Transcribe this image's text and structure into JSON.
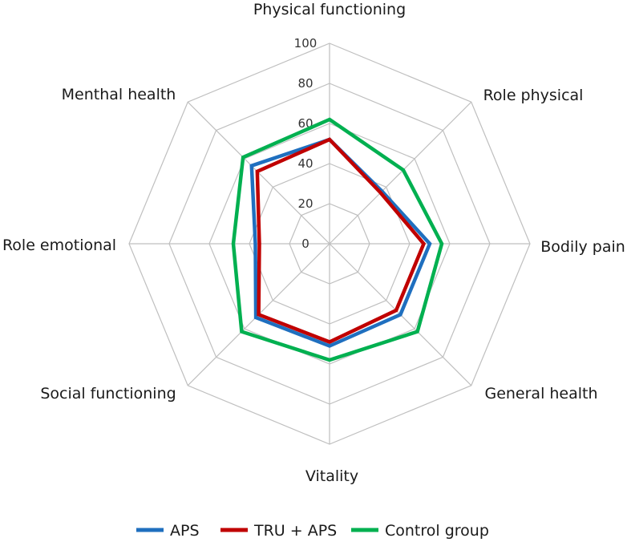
{
  "chart_data": {
    "type": "radar",
    "title": "",
    "axes": [
      "Physical functioning",
      "Role physical",
      "Bodily pain",
      "General health",
      "Vitality",
      "Social functioning",
      "Role emotional",
      "Menthal health"
    ],
    "rlim": [
      0,
      100
    ],
    "ticks": [
      "0",
      "20",
      "40",
      "60",
      "80",
      "100"
    ],
    "tick_values": [
      0,
      20,
      40,
      60,
      80,
      100
    ],
    "series": [
      {
        "name": "APS",
        "color": "#1f6fbf",
        "values": [
          52,
          37,
          50,
          50,
          51,
          52,
          37,
          55
        ]
      },
      {
        "name": "TRU + APS",
        "color": "#c00000",
        "values": [
          52,
          36,
          47,
          47,
          49,
          50,
          35,
          51
        ]
      },
      {
        "name": "Control group",
        "color": "#00b050",
        "values": [
          62,
          52,
          56,
          62,
          58,
          62,
          48,
          61
        ]
      }
    ],
    "legend_position": "bottom"
  }
}
